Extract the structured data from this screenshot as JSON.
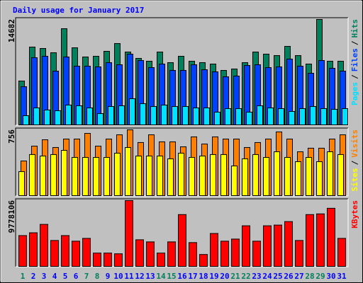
{
  "chart_data": [
    {
      "type": "bar",
      "title": "Daily usage for January 2017",
      "legend_separator": "/",
      "ylim": [
        0,
        14682
      ],
      "yticks": [
        14682
      ],
      "series": [
        {
          "name": "Pages",
          "color": "#00e0ff",
          "values": [
            1281,
            2364,
            2069,
            1970,
            2758,
            2660,
            2364,
            1576,
            2561,
            2660,
            3645,
            2955,
            2561,
            2758,
            2561,
            2561,
            2364,
            2364,
            1773,
            2266,
            2266,
            1773,
            2660,
            2364,
            2266,
            1872,
            2266,
            2561,
            2266,
            2167,
            2266
          ]
        },
        {
          "name": "Files",
          "color": "#0040ff",
          "values": [
            5319,
            9358,
            9555,
            7486,
            9456,
            8176,
            8176,
            8077,
            8668,
            8373,
            9850,
            8964,
            7979,
            8471,
            7585,
            7585,
            8373,
            7683,
            7388,
            6698,
            6797,
            8274,
            8373,
            7979,
            8077,
            9161,
            8176,
            7191,
            8964,
            7880,
            7486
          ]
        },
        {
          "name": "Hits",
          "color": "#00805c",
          "values": [
            6107,
            10836,
            10638,
            10047,
            13396,
            10737,
            9456,
            9555,
            10244,
            11328,
            10146,
            9259,
            8865,
            10146,
            8668,
            9555,
            8865,
            8668,
            8471,
            7585,
            7782,
            8668,
            10146,
            9850,
            9653,
            10934,
            9653,
            8471,
            14682,
            8865,
            8865
          ]
        }
      ]
    },
    {
      "type": "bar",
      "legend_separator": "/",
      "ylim": [
        0,
        756
      ],
      "yticks": [
        756
      ],
      "series": [
        {
          "name": "Sites",
          "color": "#ffff00",
          "values": [
            276,
            472,
            455,
            472,
            520,
            439,
            439,
            439,
            439,
            488,
            553,
            455,
            455,
            455,
            423,
            488,
            439,
            455,
            472,
            472,
            341,
            423,
            472,
            439,
            504,
            439,
            390,
            439,
            390,
            504,
            472
          ]
        },
        {
          "name": "Visits",
          "color": "#ff8000",
          "values": [
            398,
            569,
            642,
            553,
            650,
            650,
            715,
            569,
            650,
            699,
            756,
            610,
            699,
            618,
            618,
            561,
            675,
            593,
            675,
            650,
            650,
            553,
            610,
            650,
            732,
            650,
            504,
            545,
            545,
            650,
            699
          ]
        }
      ]
    },
    {
      "type": "bar",
      "ylim": [
        0,
        9778106
      ],
      "yticks": [
        9778106
      ],
      "categories": [
        "1",
        "2",
        "3",
        "4",
        "5",
        "6",
        "7",
        "8",
        "9",
        "10",
        "11",
        "12",
        "13",
        "14",
        "15",
        "16",
        "17",
        "18",
        "19",
        "20",
        "21",
        "22",
        "23",
        "24",
        "25",
        "26",
        "27",
        "28",
        "29",
        "30",
        "31"
      ],
      "category_colors": [
        "#00805c",
        "#0000ff",
        "#0000ff",
        "#0000ff",
        "#0000ff",
        "#0000ff",
        "#00805c",
        "#00805c",
        "#0000ff",
        "#0000ff",
        "#0000ff",
        "#0000ff",
        "#0000ff",
        "#00805c",
        "#00805c",
        "#0000ff",
        "#0000ff",
        "#0000ff",
        "#0000ff",
        "#0000ff",
        "#00805c",
        "#00805c",
        "#0000ff",
        "#0000ff",
        "#0000ff",
        "#0000ff",
        "#0000ff",
        "#00805c",
        "#00805c",
        "#0000ff",
        "#0000ff"
      ],
      "series": [
        {
          "name": "KBytes",
          "color": "#ff0000",
          "values": [
            4577000,
            4993000,
            6241000,
            3849000,
            4577000,
            3745000,
            4161000,
            1976000,
            1976000,
            1872000,
            9778106,
            3953000,
            3641000,
            1976000,
            3641000,
            7698000,
            3537000,
            1768000,
            4889000,
            3745000,
            4057000,
            6033000,
            3745000,
            6033000,
            6137000,
            6657000,
            3849000,
            7698000,
            7802000,
            8634000,
            4161000
          ]
        }
      ]
    }
  ]
}
